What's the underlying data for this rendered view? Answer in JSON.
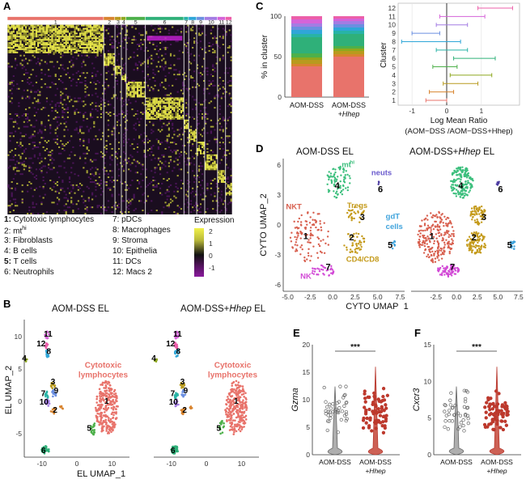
{
  "panels": {
    "A": "A",
    "B": "B",
    "C": "C",
    "D": "D",
    "E": "E",
    "F": "F"
  },
  "colors": {
    "c1": "#e8736b",
    "c2": "#d8842f",
    "c3": "#b89a1e",
    "c4": "#8ea81f",
    "c5": "#4db04a",
    "c6": "#2fb079",
    "c7": "#28b3a6",
    "c8": "#2fa6d8",
    "c9": "#6b8fe0",
    "c10": "#a37ce3",
    "c11": "#d563d8",
    "c12": "#ec5fa9"
  },
  "heatmap": {
    "cluster_ids": [
      "1",
      "2",
      "3",
      "4",
      "5",
      "6",
      "7",
      "8",
      "9",
      "10",
      "11",
      "12"
    ],
    "legend_entries": [
      {
        "num": "1",
        "label": "Cytotoxic lymphocytes"
      },
      {
        "num": "2",
        "label": "mt"
      },
      {
        "num": "3",
        "label": "Fibroblasts"
      },
      {
        "num": "4",
        "label": "B cells"
      },
      {
        "num": "5",
        "label": "T cells"
      },
      {
        "num": "6",
        "label": "Neutrophils"
      },
      {
        "num": "7",
        "label": "pDCs"
      },
      {
        "num": "8",
        "label": "Macrophages"
      },
      {
        "num": "9",
        "label": "Stroma"
      },
      {
        "num": "10",
        "label": "Epithelia"
      },
      {
        "num": "11",
        "label": "DCs"
      },
      {
        "num": "12",
        "label": "Macs 2"
      }
    ],
    "mt_superscript": "hi",
    "expression_title": "Expression",
    "expression_ticks": [
      "2",
      "1",
      "0",
      "-1"
    ]
  },
  "umap_el": {
    "left_title": "AOM-DSS EL",
    "right_title_prefix": "AOM-DSS+",
    "right_title_italic": "Hhep",
    "right_title_suffix": " EL",
    "xlabel": "EL UMAP_1",
    "ylabel": "EL UMAP_2",
    "xticks": [
      "-10",
      "0",
      "10"
    ],
    "yticks": [
      "10",
      "5",
      "0",
      "-5"
    ],
    "annotation": "Cytotoxic lymphocytes",
    "cluster_labels": [
      "11",
      "12",
      "8",
      "4",
      "3",
      "9",
      "7",
      "10",
      "2",
      "1",
      "5",
      "6"
    ]
  },
  "bar_panel": {
    "ylabel": "% in cluster",
    "yticks": [
      "100",
      "50",
      "0"
    ],
    "categories": [
      "AOM-DSS",
      "AOM-DSS"
    ],
    "cat2_italic": "+Hhep",
    "forest_ylabel": "Cluster",
    "forest_xlabel": "Log Mean Ratio",
    "forest_xlabel2": "(AOM−DSS /AOM−DSS+Hhep)",
    "forest_xticks": [
      "-1",
      "0",
      "1"
    ],
    "forest_clusters": [
      "12",
      "11",
      "10",
      "9",
      "8",
      "7",
      "6",
      "5",
      "4",
      "3",
      "2",
      "1"
    ]
  },
  "umap_cyto": {
    "left_title": "AOM-DSS EL",
    "right_title_prefix": "AOM-DSS+",
    "right_title_italic": "Hhep",
    "right_title_suffix": " EL",
    "xlabel": "CYTO UMAP_1",
    "ylabel": "CYTO UMAP_2",
    "xticks": [
      "-5.0",
      "-2.5",
      "0.0",
      "2.5",
      "5.0",
      "7.5"
    ],
    "xticks_right": [
      "-2.5",
      "0.0",
      "2.5",
      "5.0",
      "7.5"
    ],
    "yticks": [
      "6",
      "3",
      "0",
      "-3",
      "-6"
    ],
    "annotations": {
      "mt": "mt",
      "mt_sup": "hi",
      "neuts": "neuts",
      "tregs": "Tregs",
      "nkt": "NKT",
      "gdt": "gdT",
      "cells": "cells",
      "cd4": "CD4/CD8",
      "nk": "NK"
    },
    "cluster_labels": [
      "4",
      "6",
      "3",
      "2",
      "1",
      "5",
      "7"
    ]
  },
  "violin_E": {
    "gene": "Gzma",
    "significance": "***",
    "yticks": [
      "20",
      "15",
      "10",
      "5",
      "0"
    ],
    "categories": [
      "AOM-DSS",
      "AOM-DSS"
    ],
    "cat2_italic": "+Hhep"
  },
  "violin_F": {
    "gene": "Cxcr3",
    "significance": "***",
    "yticks": [
      "15",
      "10",
      "5",
      "0"
    ],
    "categories": [
      "AOM-DSS",
      "AOM-DSS"
    ],
    "cat2_italic": "+Hhep"
  },
  "chart_data": [
    {
      "type": "bar",
      "categories": [
        "AOM-DSS",
        "AOM-DSS+Hhep"
      ],
      "ylabel": "% in cluster",
      "ylim": [
        0,
        100
      ],
      "series": [
        {
          "name": "1",
          "values": [
            38,
            50
          ]
        },
        {
          "name": "2",
          "values": [
            3,
            3
          ]
        },
        {
          "name": "3",
          "values": [
            5,
            4
          ]
        },
        {
          "name": "4",
          "values": [
            3,
            3
          ]
        },
        {
          "name": "5",
          "values": [
            5,
            3
          ]
        },
        {
          "name": "6",
          "values": [
            20,
            15
          ]
        },
        {
          "name": "7",
          "values": [
            4,
            4
          ]
        },
        {
          "name": "8",
          "values": [
            5,
            4
          ]
        },
        {
          "name": "9",
          "values": [
            4,
            4
          ]
        },
        {
          "name": "10",
          "values": [
            4,
            4
          ]
        },
        {
          "name": "11",
          "values": [
            5,
            3
          ]
        },
        {
          "name": "12",
          "values": [
            4,
            3
          ]
        }
      ]
    },
    {
      "type": "scatter",
      "xlabel": "Log Mean Ratio",
      "ylabel": "Cluster",
      "xlim": [
        -1.4,
        2.1
      ],
      "categories": [
        "1",
        "2",
        "3",
        "4",
        "5",
        "6",
        "7",
        "8",
        "9",
        "10",
        "11",
        "12"
      ],
      "lo": [
        -0.6,
        -0.5,
        -0.1,
        0.1,
        -0.4,
        0.2,
        -0.3,
        -1.3,
        -1.0,
        -0.3,
        -0.2,
        0.9
      ],
      "mid": [
        -0.3,
        -0.2,
        0.3,
        0.7,
        -0.1,
        0.8,
        0.2,
        -0.4,
        -0.6,
        0.1,
        0.4,
        1.4
      ],
      "hi": [
        0.0,
        0.2,
        0.9,
        1.3,
        0.3,
        1.4,
        0.6,
        0.4,
        -0.2,
        0.6,
        1.1,
        1.9
      ]
    },
    {
      "type": "scatter",
      "title": "Gzma",
      "categories": [
        "AOM-DSS",
        "AOM-DSS+Hhep"
      ],
      "ylim": [
        0,
        20
      ],
      "significance": "***"
    },
    {
      "type": "scatter",
      "title": "Cxcr3",
      "categories": [
        "AOM-DSS",
        "AOM-DSS+Hhep"
      ],
      "ylim": [
        0,
        15
      ],
      "significance": "***"
    }
  ]
}
